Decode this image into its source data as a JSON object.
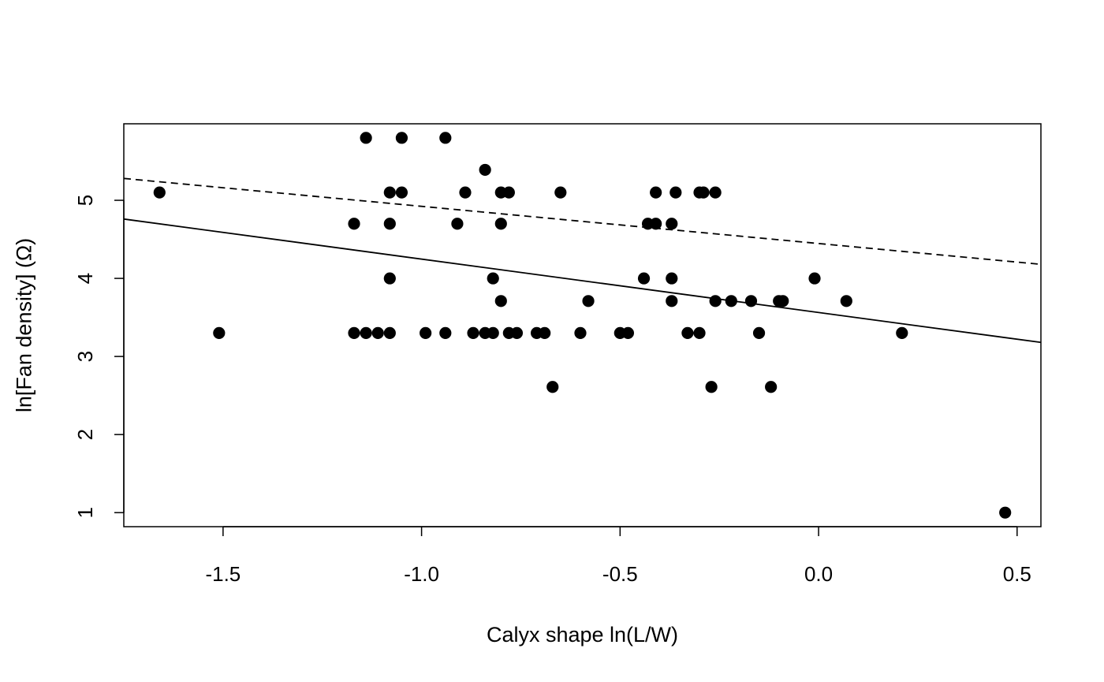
{
  "chart_data": {
    "type": "scatter",
    "title": "",
    "xlabel": "Calyx shape ln(L/W)",
    "ylabel": "ln[Fan density] (Ω)",
    "xlim": [
      -1.75,
      0.56
    ],
    "ylim": [
      0.82,
      5.98
    ],
    "x_ticks": [
      -1.5,
      -1.0,
      -0.5,
      0.0,
      0.5
    ],
    "x_tick_labels": [
      "-1.5",
      "-1.0",
      "-0.5",
      "0.0",
      "0.5"
    ],
    "y_ticks": [
      1,
      2,
      3,
      4,
      5
    ],
    "y_tick_labels": [
      "1",
      "2",
      "3",
      "4",
      "5"
    ],
    "grid": false,
    "legend": "none",
    "point_color": "#000000",
    "points": [
      [
        -1.66,
        5.1
      ],
      [
        -1.51,
        3.3
      ],
      [
        -1.17,
        4.7
      ],
      [
        -1.17,
        3.3
      ],
      [
        -1.14,
        5.8
      ],
      [
        -1.14,
        3.3
      ],
      [
        -1.11,
        3.3
      ],
      [
        -1.08,
        5.1
      ],
      [
        -1.08,
        4.7
      ],
      [
        -1.08,
        4.0
      ],
      [
        -1.08,
        3.3
      ],
      [
        -1.05,
        5.8
      ],
      [
        -1.05,
        5.1
      ],
      [
        -0.99,
        3.3
      ],
      [
        -0.94,
        5.8
      ],
      [
        -0.94,
        3.3
      ],
      [
        -0.91,
        4.7
      ],
      [
        -0.89,
        5.1
      ],
      [
        -0.87,
        3.3
      ],
      [
        -0.84,
        5.39
      ],
      [
        -0.84,
        3.3
      ],
      [
        -0.82,
        4.0
      ],
      [
        -0.82,
        3.3
      ],
      [
        -0.8,
        5.1
      ],
      [
        -0.8,
        4.7
      ],
      [
        -0.8,
        3.71
      ],
      [
        -0.78,
        5.1
      ],
      [
        -0.78,
        3.3
      ],
      [
        -0.76,
        3.3
      ],
      [
        -0.71,
        3.3
      ],
      [
        -0.69,
        3.3
      ],
      [
        -0.67,
        2.61
      ],
      [
        -0.65,
        5.1
      ],
      [
        -0.6,
        3.3
      ],
      [
        -0.58,
        3.71
      ],
      [
        -0.5,
        3.3
      ],
      [
        -0.48,
        3.3
      ],
      [
        -0.44,
        4.0
      ],
      [
        -0.43,
        4.7
      ],
      [
        -0.41,
        5.1
      ],
      [
        -0.41,
        4.7
      ],
      [
        -0.37,
        4.7
      ],
      [
        -0.37,
        4.0
      ],
      [
        -0.37,
        3.71
      ],
      [
        -0.36,
        5.1
      ],
      [
        -0.33,
        3.3
      ],
      [
        -0.3,
        5.1
      ],
      [
        -0.3,
        3.3
      ],
      [
        -0.29,
        5.1
      ],
      [
        -0.27,
        2.61
      ],
      [
        -0.26,
        5.1
      ],
      [
        -0.26,
        3.71
      ],
      [
        -0.22,
        3.71
      ],
      [
        -0.17,
        3.71
      ],
      [
        -0.15,
        3.3
      ],
      [
        -0.12,
        2.61
      ],
      [
        -0.1,
        3.71
      ],
      [
        -0.09,
        3.71
      ],
      [
        -0.01,
        4.0
      ],
      [
        0.07,
        3.71
      ],
      [
        0.21,
        3.3
      ],
      [
        0.47,
        1.0
      ]
    ],
    "lines": [
      {
        "style": "solid",
        "x": [
          -1.75,
          0.56
        ],
        "y": [
          4.76,
          3.18
        ]
      },
      {
        "style": "dashed",
        "x": [
          -1.75,
          0.56
        ],
        "y": [
          5.28,
          4.18
        ]
      }
    ]
  }
}
